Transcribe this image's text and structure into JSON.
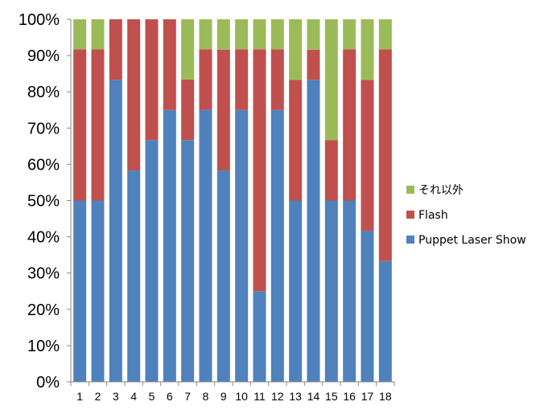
{
  "chart_data": {
    "type": "bar",
    "stacked": true,
    "percent_stacked": true,
    "categories": [
      "1",
      "2",
      "3",
      "4",
      "5",
      "6",
      "7",
      "8",
      "9",
      "10",
      "11",
      "12",
      "13",
      "14",
      "15",
      "16",
      "17",
      "18"
    ],
    "series": [
      {
        "name": "Puppet Laser Show",
        "color": "#4f81bd",
        "values": [
          50.0,
          50.0,
          83.3,
          58.3,
          66.7,
          75.0,
          66.7,
          75.0,
          58.3,
          75.0,
          25.0,
          75.0,
          50.0,
          83.3,
          50.0,
          50.0,
          41.7,
          33.3
        ]
      },
      {
        "name": "Flash",
        "color": "#c0504d",
        "values": [
          41.7,
          41.7,
          16.7,
          41.7,
          33.3,
          25.0,
          16.7,
          16.7,
          33.3,
          16.7,
          66.7,
          16.7,
          33.3,
          8.3,
          16.7,
          41.7,
          41.6,
          58.4
        ]
      },
      {
        "name": "それ以外",
        "color": "#9bbb59",
        "values": [
          8.3,
          8.3,
          0.0,
          0.0,
          0.0,
          0.0,
          16.6,
          8.3,
          8.4,
          8.3,
          8.3,
          8.3,
          16.7,
          8.4,
          33.3,
          8.3,
          16.7,
          8.3
        ]
      }
    ],
    "ylim": [
      0,
      100
    ],
    "yticks": [
      "0%",
      "10%",
      "20%",
      "30%",
      "40%",
      "50%",
      "60%",
      "70%",
      "80%",
      "90%",
      "100%"
    ],
    "legend_order": [
      "それ以外",
      "Flash",
      "Puppet Laser Show"
    ],
    "legend_position": "right",
    "grid": false
  }
}
